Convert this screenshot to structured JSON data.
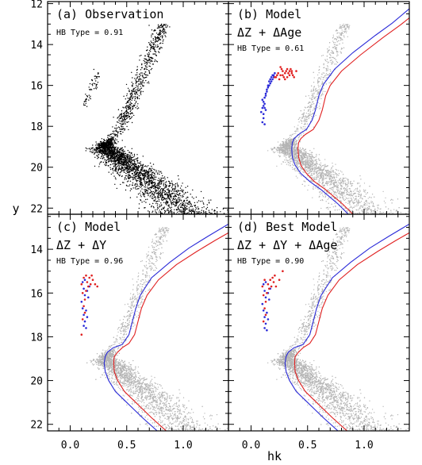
{
  "figure": {
    "xlabel": "hk",
    "ylabel": "y",
    "x_ticks": [
      0.0,
      0.5,
      1.0
    ],
    "x_tick_labels": [
      "0.0",
      "0.5",
      "1.0"
    ],
    "y_ticks": [
      12,
      14,
      16,
      18,
      20,
      22
    ],
    "y_tick_labels": [
      "12",
      "14",
      "16",
      "18",
      "20",
      "22"
    ],
    "colors": {
      "observed": "#000000",
      "synthetic": "#b4b4b4",
      "blue": "#2a2ad8",
      "red": "#e02020"
    }
  },
  "panels": [
    {
      "title": "(a) Observation",
      "subtitle": "",
      "hb": "HB Type = 0.91"
    },
    {
      "title": "(b) Model",
      "subtitle": "ΔZ + ΔAge",
      "hb": "HB Type = 0.61"
    },
    {
      "title": "(c) Model",
      "subtitle": "ΔZ + ΔY",
      "hb": "HB Type = 0.96"
    },
    {
      "title": "(d) Best Model",
      "subtitle": "ΔZ + ΔY + ΔAge",
      "hb": "HB Type = 0.90"
    }
  ],
  "chart_data": [
    {
      "type": "scatter",
      "title": "(a) Observation",
      "annotation": "HB Type = 0.91",
      "xlabel": "hk",
      "ylabel": "y",
      "xlim": [
        -0.2,
        1.4
      ],
      "ylim": [
        22.3,
        11.9
      ],
      "y_inverted": true,
      "series": []
    },
    {
      "type": "scatter",
      "title": "(b) Model",
      "subtitle": "ΔZ + ΔAge",
      "annotation": "HB Type = 0.61",
      "xlim": [
        -0.2,
        1.4
      ],
      "ylim": [
        22.3,
        11.9
      ],
      "y_inverted": true,
      "series": [
        {
          "color": "#2a2ad8",
          "mark": "line",
          "points": [
            [
              0.87,
              22.35
            ],
            [
              0.77,
              21.8
            ],
            [
              0.62,
              21.1
            ],
            [
              0.52,
              20.7
            ],
            [
              0.44,
              20.3
            ],
            [
              0.39,
              19.9
            ],
            [
              0.365,
              19.5
            ],
            [
              0.36,
              19.1
            ],
            [
              0.365,
              18.8
            ],
            [
              0.38,
              18.6
            ],
            [
              0.42,
              18.4
            ],
            [
              0.49,
              18.15
            ],
            [
              0.54,
              17.7
            ],
            [
              0.57,
              17.2
            ],
            [
              0.6,
              16.5
            ],
            [
              0.64,
              15.95
            ],
            [
              0.74,
              15.2
            ],
            [
              0.9,
              14.4
            ],
            [
              1.1,
              13.55
            ],
            [
              1.25,
              12.95
            ],
            [
              1.4,
              12.25
            ]
          ]
        },
        {
          "color": "#e02020",
          "mark": "line",
          "points": [
            [
              0.91,
              22.35
            ],
            [
              0.81,
              21.8
            ],
            [
              0.66,
              21.1
            ],
            [
              0.56,
              20.7
            ],
            [
              0.49,
              20.3
            ],
            [
              0.44,
              19.9
            ],
            [
              0.42,
              19.5
            ],
            [
              0.415,
              19.1
            ],
            [
              0.42,
              18.8
            ],
            [
              0.44,
              18.6
            ],
            [
              0.48,
              18.4
            ],
            [
              0.55,
              18.15
            ],
            [
              0.6,
              17.7
            ],
            [
              0.63,
              17.2
            ],
            [
              0.66,
              16.5
            ],
            [
              0.7,
              16.0
            ],
            [
              0.8,
              15.3
            ],
            [
              0.97,
              14.5
            ],
            [
              1.17,
              13.65
            ],
            [
              1.32,
              13.05
            ],
            [
              1.4,
              12.7
            ]
          ]
        },
        {
          "color": "#2a2ad8",
          "mark": "dots",
          "points": [
            [
              0.1,
              16.7
            ],
            [
              0.11,
              17.0
            ],
            [
              0.12,
              16.9
            ],
            [
              0.09,
              17.3
            ],
            [
              0.11,
              17.6
            ],
            [
              0.12,
              17.9
            ],
            [
              0.13,
              16.4
            ],
            [
              0.14,
              16.2
            ],
            [
              0.15,
              16.0
            ],
            [
              0.16,
              15.8
            ],
            [
              0.17,
              15.7
            ],
            [
              0.18,
              15.6
            ],
            [
              0.19,
              15.5
            ],
            [
              0.2,
              15.5
            ],
            [
              0.21,
              15.4
            ],
            [
              0.11,
              17.4
            ],
            [
              0.1,
              17.1
            ],
            [
              0.12,
              16.6
            ],
            [
              0.13,
              16.5
            ],
            [
              0.14,
              16.3
            ],
            [
              0.15,
              16.1
            ],
            [
              0.16,
              16.0
            ],
            [
              0.17,
              15.9
            ],
            [
              0.18,
              15.8
            ],
            [
              0.1,
              17.8
            ],
            [
              0.11,
              16.8
            ],
            [
              0.19,
              15.7
            ],
            [
              0.2,
              15.6
            ],
            [
              0.13,
              17.2
            ],
            [
              0.12,
              17.1
            ]
          ]
        },
        {
          "color": "#e02020",
          "mark": "dots",
          "points": [
            [
              0.22,
              15.6
            ],
            [
              0.24,
              15.4
            ],
            [
              0.26,
              15.5
            ],
            [
              0.28,
              15.3
            ],
            [
              0.3,
              15.4
            ],
            [
              0.32,
              15.2
            ],
            [
              0.34,
              15.5
            ],
            [
              0.36,
              15.3
            ],
            [
              0.38,
              15.6
            ],
            [
              0.25,
              15.7
            ],
            [
              0.27,
              15.2
            ],
            [
              0.29,
              15.6
            ],
            [
              0.31,
              15.3
            ],
            [
              0.33,
              15.4
            ],
            [
              0.35,
              15.2
            ],
            [
              0.37,
              15.5
            ],
            [
              0.4,
              15.3
            ],
            [
              0.23,
              15.5
            ],
            [
              0.21,
              15.6
            ],
            [
              0.26,
              15.1
            ],
            [
              0.3,
              15.7
            ],
            [
              0.34,
              15.3
            ],
            [
              0.28,
              15.5
            ],
            [
              0.32,
              15.6
            ],
            [
              0.36,
              15.4
            ]
          ]
        }
      ]
    },
    {
      "type": "scatter",
      "title": "(c) Model",
      "subtitle": "ΔZ + ΔY",
      "annotation": "HB Type = 0.96",
      "xlim": [
        -0.2,
        1.4
      ],
      "ylim": [
        22.3,
        12.4
      ],
      "y_inverted": true,
      "series": [
        {
          "color": "#2a2ad8",
          "mark": "line",
          "points": [
            [
              0.78,
              22.35
            ],
            [
              0.64,
              21.7
            ],
            [
              0.5,
              21.0
            ],
            [
              0.4,
              20.5
            ],
            [
              0.34,
              20.0
            ],
            [
              0.31,
              19.6
            ],
            [
              0.3,
              19.2
            ],
            [
              0.31,
              18.9
            ],
            [
              0.33,
              18.7
            ],
            [
              0.38,
              18.5
            ],
            [
              0.46,
              18.35
            ],
            [
              0.52,
              17.9
            ],
            [
              0.55,
              17.3
            ],
            [
              0.58,
              16.7
            ],
            [
              0.62,
              16.1
            ],
            [
              0.72,
              15.3
            ],
            [
              0.88,
              14.6
            ],
            [
              1.05,
              13.95
            ],
            [
              1.22,
              13.4
            ],
            [
              1.4,
              12.85
            ]
          ]
        },
        {
          "color": "#e02020",
          "mark": "line",
          "points": [
            [
              0.86,
              22.35
            ],
            [
              0.72,
              21.7
            ],
            [
              0.58,
              21.0
            ],
            [
              0.48,
              20.5
            ],
            [
              0.42,
              20.0
            ],
            [
              0.39,
              19.6
            ],
            [
              0.385,
              19.2
            ],
            [
              0.39,
              18.9
            ],
            [
              0.42,
              18.7
            ],
            [
              0.46,
              18.5
            ],
            [
              0.52,
              18.3
            ],
            [
              0.57,
              17.9
            ],
            [
              0.6,
              17.3
            ],
            [
              0.63,
              16.7
            ],
            [
              0.68,
              16.1
            ],
            [
              0.78,
              15.4
            ],
            [
              0.94,
              14.7
            ],
            [
              1.12,
              14.1
            ],
            [
              1.28,
              13.6
            ],
            [
              1.4,
              13.25
            ]
          ]
        },
        {
          "color": "#2a2ad8",
          "mark": "dots",
          "points": [
            [
              0.11,
              15.5
            ],
            [
              0.12,
              15.8
            ],
            [
              0.13,
              16.1
            ],
            [
              0.1,
              16.4
            ],
            [
              0.11,
              16.7
            ],
            [
              0.12,
              17.0
            ],
            [
              0.13,
              17.3
            ],
            [
              0.14,
              17.6
            ],
            [
              0.15,
              15.9
            ],
            [
              0.16,
              16.2
            ],
            [
              0.17,
              15.7
            ],
            [
              0.14,
              16.8
            ],
            [
              0.12,
              17.5
            ],
            [
              0.13,
              15.4
            ],
            [
              0.15,
              17.1
            ]
          ]
        },
        {
          "color": "#e02020",
          "mark": "dots",
          "points": [
            [
              0.1,
              15.6
            ],
            [
              0.11,
              16.0
            ],
            [
              0.12,
              15.3
            ],
            [
              0.13,
              16.3
            ],
            [
              0.14,
              15.9
            ],
            [
              0.15,
              15.5
            ],
            [
              0.16,
              15.7
            ],
            [
              0.17,
              15.3
            ],
            [
              0.18,
              15.6
            ],
            [
              0.19,
              15.2
            ],
            [
              0.2,
              15.4
            ],
            [
              0.22,
              15.6
            ],
            [
              0.12,
              16.6
            ],
            [
              0.11,
              17.2
            ],
            [
              0.1,
              17.9
            ],
            [
              0.13,
              16.9
            ],
            [
              0.14,
              15.2
            ],
            [
              0.24,
              15.7
            ]
          ]
        }
      ]
    },
    {
      "type": "scatter",
      "title": "(d) Best Model",
      "subtitle": "ΔZ + ΔY + ΔAge",
      "annotation": "HB Type = 0.90",
      "xlim": [
        -0.2,
        1.4
      ],
      "ylim": [
        22.3,
        12.4
      ],
      "y_inverted": true,
      "series": [
        {
          "color": "#2a2ad8",
          "mark": "line",
          "points": [
            [
              0.78,
              22.35
            ],
            [
              0.64,
              21.7
            ],
            [
              0.5,
              21.0
            ],
            [
              0.4,
              20.5
            ],
            [
              0.34,
              20.0
            ],
            [
              0.31,
              19.6
            ],
            [
              0.3,
              19.2
            ],
            [
              0.31,
              18.9
            ],
            [
              0.33,
              18.7
            ],
            [
              0.38,
              18.5
            ],
            [
              0.46,
              18.35
            ],
            [
              0.52,
              17.9
            ],
            [
              0.55,
              17.3
            ],
            [
              0.58,
              16.7
            ],
            [
              0.62,
              16.1
            ],
            [
              0.72,
              15.3
            ],
            [
              0.88,
              14.6
            ],
            [
              1.05,
              13.95
            ],
            [
              1.22,
              13.4
            ],
            [
              1.4,
              12.85
            ]
          ]
        },
        {
          "color": "#e02020",
          "mark": "line",
          "points": [
            [
              0.86,
              22.35
            ],
            [
              0.72,
              21.7
            ],
            [
              0.58,
              21.0
            ],
            [
              0.48,
              20.5
            ],
            [
              0.42,
              20.0
            ],
            [
              0.39,
              19.6
            ],
            [
              0.385,
              19.2
            ],
            [
              0.39,
              18.9
            ],
            [
              0.42,
              18.7
            ],
            [
              0.46,
              18.5
            ],
            [
              0.52,
              18.3
            ],
            [
              0.57,
              17.9
            ],
            [
              0.6,
              17.3
            ],
            [
              0.63,
              16.7
            ],
            [
              0.68,
              16.1
            ],
            [
              0.78,
              15.4
            ],
            [
              0.94,
              14.7
            ],
            [
              1.12,
              14.1
            ],
            [
              1.28,
              13.6
            ],
            [
              1.4,
              13.25
            ]
          ]
        },
        {
          "color": "#2a2ad8",
          "mark": "dots",
          "points": [
            [
              0.11,
              15.6
            ],
            [
              0.12,
              15.9
            ],
            [
              0.13,
              16.2
            ],
            [
              0.1,
              16.5
            ],
            [
              0.11,
              16.8
            ],
            [
              0.12,
              17.1
            ],
            [
              0.13,
              17.4
            ],
            [
              0.14,
              17.7
            ],
            [
              0.15,
              16.0
            ],
            [
              0.16,
              16.3
            ],
            [
              0.17,
              15.8
            ],
            [
              0.14,
              16.9
            ],
            [
              0.12,
              17.6
            ],
            [
              0.13,
              15.5
            ],
            [
              0.15,
              17.2
            ]
          ]
        },
        {
          "color": "#e02020",
          "mark": "dots",
          "points": [
            [
              0.1,
              15.7
            ],
            [
              0.11,
              16.1
            ],
            [
              0.12,
              15.4
            ],
            [
              0.13,
              16.4
            ],
            [
              0.14,
              16.0
            ],
            [
              0.15,
              15.6
            ],
            [
              0.16,
              15.8
            ],
            [
              0.17,
              15.4
            ],
            [
              0.18,
              15.7
            ],
            [
              0.19,
              15.3
            ],
            [
              0.2,
              15.5
            ],
            [
              0.22,
              15.7
            ],
            [
              0.25,
              15.4
            ],
            [
              0.28,
              15.0
            ],
            [
              0.12,
              16.7
            ],
            [
              0.11,
              17.3
            ],
            [
              0.13,
              17.0
            ],
            [
              0.21,
              15.2
            ]
          ]
        }
      ]
    }
  ]
}
